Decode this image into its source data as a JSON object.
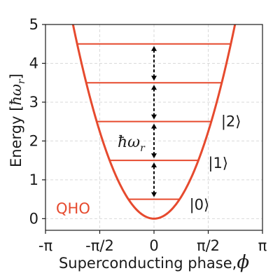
{
  "chart_data": {
    "type": "line",
    "xlabel_text": "Superconducting phase,",
    "xlabel_symbol": "ϕ",
    "ylabel_text": "Energy [",
    "ylabel_symbol": "ħω",
    "ylabel_sub": "r",
    "ylabel_close": "]",
    "xlim": [
      -3.14159,
      3.14159
    ],
    "ylim": [
      -0.3,
      5
    ],
    "x_ticks": [
      -3.14159,
      -1.5708,
      0,
      1.5708,
      3.14159
    ],
    "x_tick_labels": [
      "-π",
      "-π/2",
      "0",
      "π/2",
      "π"
    ],
    "y_ticks": [
      0,
      1,
      2,
      3,
      4,
      5
    ],
    "y_tick_labels": [
      "0",
      "1",
      "2",
      "3",
      "4",
      "5"
    ],
    "grid": true,
    "potential": {
      "name": "QHO",
      "color": "#e64a2e",
      "formula": "E = phi^2 / 1.1"
    },
    "levels": [
      {
        "E": 0.5,
        "label": "|0⟩"
      },
      {
        "E": 1.5,
        "label": "|1⟩"
      },
      {
        "E": 2.5,
        "label": "|2⟩"
      },
      {
        "E": 3.5,
        "label": ""
      },
      {
        "E": 4.5,
        "label": ""
      }
    ],
    "spacing_annotation": {
      "symbol": "ħω",
      "sub": "r"
    }
  }
}
